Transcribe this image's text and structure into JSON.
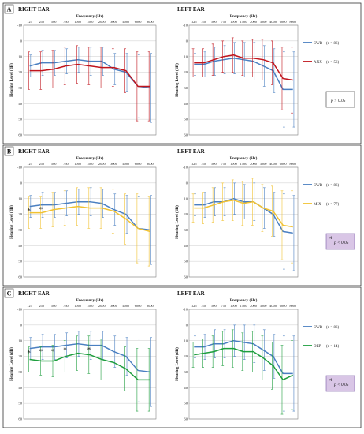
{
  "x_axis_title": "Frequency   (Hz)",
  "y_axis_title": "Hearing Level (dB)",
  "frequencies": [
    "125",
    "250",
    "500",
    "750",
    "1000",
    "1500",
    "2000",
    "3000",
    "4000",
    "6000",
    "8000"
  ],
  "y_ticks": [
    "-10",
    "0",
    "10",
    "20",
    "30",
    "40",
    "50",
    "60"
  ],
  "colors": {
    "ewb": "#4a7fc1",
    "anx": "#c0141c",
    "mix": "#f1c232",
    "dep": "#1e9e3e",
    "pbox": "#d9c6e6"
  },
  "panels": [
    {
      "letter": "A",
      "right_title": "RIGHT EAR",
      "left_title": "LEFT EAR",
      "legend": [
        {
          "label": "EWB",
          "n": "(n = 86)",
          "color": "#4a7fc1"
        },
        {
          "label": "ANX",
          "n": "(n = 56)",
          "color": "#c0141c"
        }
      ],
      "pvalue": "p > 0.05",
      "pvalue_highlight": false,
      "star_glyph": "",
      "stars_right": [],
      "stars_left": []
    },
    {
      "letter": "B",
      "right_title": "RIGHT EAR",
      "left_title": "LEFT EAR",
      "legend": [
        {
          "label": "EWB",
          "n": "(n = 86)",
          "color": "#4a7fc1"
        },
        {
          "label": "MIX",
          "n": "(n = 77)",
          "color": "#f1c232"
        }
      ],
      "pvalue": "p < 0.05",
      "pvalue_highlight": true,
      "star_glyph": "*",
      "stars_right": [
        0,
        1
      ],
      "stars_left": []
    },
    {
      "letter": "C",
      "right_title": "RIGHT EAR",
      "left_title": "LEFT EAR",
      "legend": [
        {
          "label": "EWB",
          "n": "(n = 86)",
          "color": "#4a7fc1"
        },
        {
          "label": "DEP",
          "n": "(n = 14)",
          "color": "#1e9e3e"
        }
      ],
      "pvalue": "p < 0.05",
      "pvalue_highlight": true,
      "star_glyph": "*",
      "stars_right": [
        0,
        1,
        2,
        3,
        5
      ],
      "stars_left": []
    }
  ],
  "chart_data": [
    {
      "panel": "A",
      "ear": "RIGHT EAR",
      "type": "line",
      "x": [
        "125",
        "250",
        "500",
        "750",
        "1000",
        "1500",
        "2000",
        "3000",
        "4000",
        "6000",
        "8000"
      ],
      "xlabel": "Frequency   (Hz)",
      "ylabel": "Hearing Level (dB)",
      "ylim": [
        -10,
        60
      ],
      "y_inverted": true,
      "grid": true,
      "series": [
        {
          "name": "EWB",
          "color": "#4a7fc1",
          "values": [
            16,
            14,
            14,
            13,
            12,
            13,
            13,
            18,
            20,
            29,
            30
          ],
          "sd": [
            7,
            8,
            8,
            8,
            8,
            9,
            9,
            10,
            12,
            20,
            22
          ]
        },
        {
          "name": "ANX",
          "color": "#c0141c",
          "values": [
            19,
            19,
            18,
            16,
            15,
            16,
            17,
            17,
            19,
            29,
            29
          ],
          "sd": [
            12,
            12,
            12,
            12,
            12,
            12,
            13,
            12,
            14,
            22,
            22
          ]
        }
      ]
    },
    {
      "panel": "A",
      "ear": "LEFT EAR",
      "type": "line",
      "x": [
        "125",
        "250",
        "500",
        "750",
        "1000",
        "1500",
        "2000",
        "3000",
        "4000",
        "6000",
        "8000"
      ],
      "xlabel": "Frequency   (Hz)",
      "ylabel": "Hearing Level (dB)",
      "ylim": [
        -10,
        60
      ],
      "y_inverted": true,
      "grid": true,
      "series": [
        {
          "name": "EWB",
          "color": "#4a7fc1",
          "values": [
            15,
            15,
            13,
            12,
            11,
            12,
            13,
            16,
            19,
            31,
            31
          ],
          "sd": [
            7,
            8,
            9,
            9,
            10,
            11,
            12,
            13,
            14,
            24,
            24
          ]
        },
        {
          "name": "ANX",
          "color": "#c0141c",
          "values": [
            14,
            14,
            12,
            10,
            9,
            11,
            11,
            12,
            14,
            24,
            25
          ],
          "sd": [
            9,
            9,
            10,
            10,
            11,
            11,
            12,
            13,
            14,
            20,
            21
          ]
        }
      ]
    },
    {
      "panel": "B",
      "ear": "RIGHT EAR",
      "type": "line",
      "x": [
        "125",
        "250",
        "500",
        "750",
        "1000",
        "1500",
        "2000",
        "3000",
        "4000",
        "6000",
        "8000"
      ],
      "xlabel": "Frequency   (Hz)",
      "ylabel": "Hearing Level (dB)",
      "ylim": [
        -10,
        60
      ],
      "y_inverted": true,
      "grid": true,
      "series": [
        {
          "name": "EWB",
          "color": "#4a7fc1",
          "values": [
            15,
            14,
            14,
            13,
            12,
            12,
            13,
            17,
            20,
            29,
            30
          ],
          "sd": [
            7,
            8,
            8,
            8,
            8,
            9,
            9,
            10,
            12,
            20,
            22
          ]
        },
        {
          "name": "MIX",
          "color": "#f1c232",
          "values": [
            19,
            19,
            17,
            16,
            15,
            16,
            16,
            18,
            23,
            29,
            31
          ],
          "sd": [
            10,
            10,
            11,
            11,
            12,
            13,
            13,
            14,
            16,
            22,
            22
          ]
        }
      ]
    },
    {
      "panel": "B",
      "ear": "LEFT EAR",
      "type": "line",
      "x": [
        "125",
        "250",
        "500",
        "750",
        "1000",
        "1500",
        "2000",
        "3000",
        "4000",
        "6000",
        "8000"
      ],
      "xlabel": "Frequency   (Hz)",
      "ylabel": "Hearing Level (dB)",
      "ylim": [
        -10,
        60
      ],
      "y_inverted": true,
      "grid": true,
      "series": [
        {
          "name": "EWB",
          "color": "#4a7fc1",
          "values": [
            14,
            14,
            12,
            12,
            10,
            12,
            12,
            16,
            20,
            31,
            32
          ],
          "sd": [
            7,
            8,
            9,
            9,
            10,
            11,
            12,
            13,
            14,
            24,
            24
          ]
        },
        {
          "name": "MIX",
          "color": "#f1c232",
          "values": [
            16,
            16,
            14,
            12,
            11,
            13,
            12,
            16,
            18,
            27,
            28
          ],
          "sd": [
            9,
            10,
            11,
            12,
            13,
            14,
            15,
            15,
            16,
            22,
            23
          ]
        }
      ]
    },
    {
      "panel": "C",
      "ear": "RIGHT EAR",
      "type": "line",
      "x": [
        "125",
        "250",
        "500",
        "750",
        "1000",
        "1500",
        "2000",
        "3000",
        "4000",
        "6000",
        "8000"
      ],
      "xlabel": "Frequency   (Hz)",
      "ylabel": "Hearing Level (dB)",
      "ylim": [
        -10,
        60
      ],
      "y_inverted": true,
      "grid": true,
      "series": [
        {
          "name": "EWB",
          "color": "#4a7fc1",
          "values": [
            15,
            14,
            14,
            13,
            12,
            13,
            13,
            17,
            20,
            29,
            30
          ],
          "sd": [
            7,
            8,
            8,
            8,
            8,
            9,
            9,
            10,
            12,
            20,
            22
          ]
        },
        {
          "name": "DEP",
          "color": "#1e9e3e",
          "values": [
            22,
            23,
            23,
            20,
            18,
            19,
            22,
            24,
            28,
            35,
            35
          ],
          "sd": [
            8,
            9,
            10,
            10,
            11,
            12,
            13,
            13,
            14,
            20,
            20
          ]
        }
      ]
    },
    {
      "panel": "C",
      "ear": "LEFT EAR",
      "type": "line",
      "x": [
        "125",
        "250",
        "500",
        "750",
        "1000",
        "1500",
        "2000",
        "3000",
        "4000",
        "6000",
        "8000"
      ],
      "xlabel": "Frequency   (Hz)",
      "ylabel": "Hearing Level (dB)",
      "ylim": [
        -10,
        60
      ],
      "y_inverted": true,
      "grid": true,
      "series": [
        {
          "name": "EWB",
          "color": "#4a7fc1",
          "values": [
            14,
            14,
            12,
            12,
            10,
            11,
            12,
            16,
            20,
            31,
            31
          ],
          "sd": [
            7,
            8,
            9,
            9,
            10,
            11,
            12,
            13,
            14,
            24,
            24
          ]
        },
        {
          "name": "DEP",
          "color": "#1e9e3e",
          "values": [
            19,
            18,
            17,
            15,
            15,
            17,
            17,
            21,
            26,
            35,
            32
          ],
          "sd": [
            8,
            9,
            10,
            11,
            12,
            12,
            13,
            14,
            15,
            22,
            22
          ]
        }
      ]
    }
  ]
}
